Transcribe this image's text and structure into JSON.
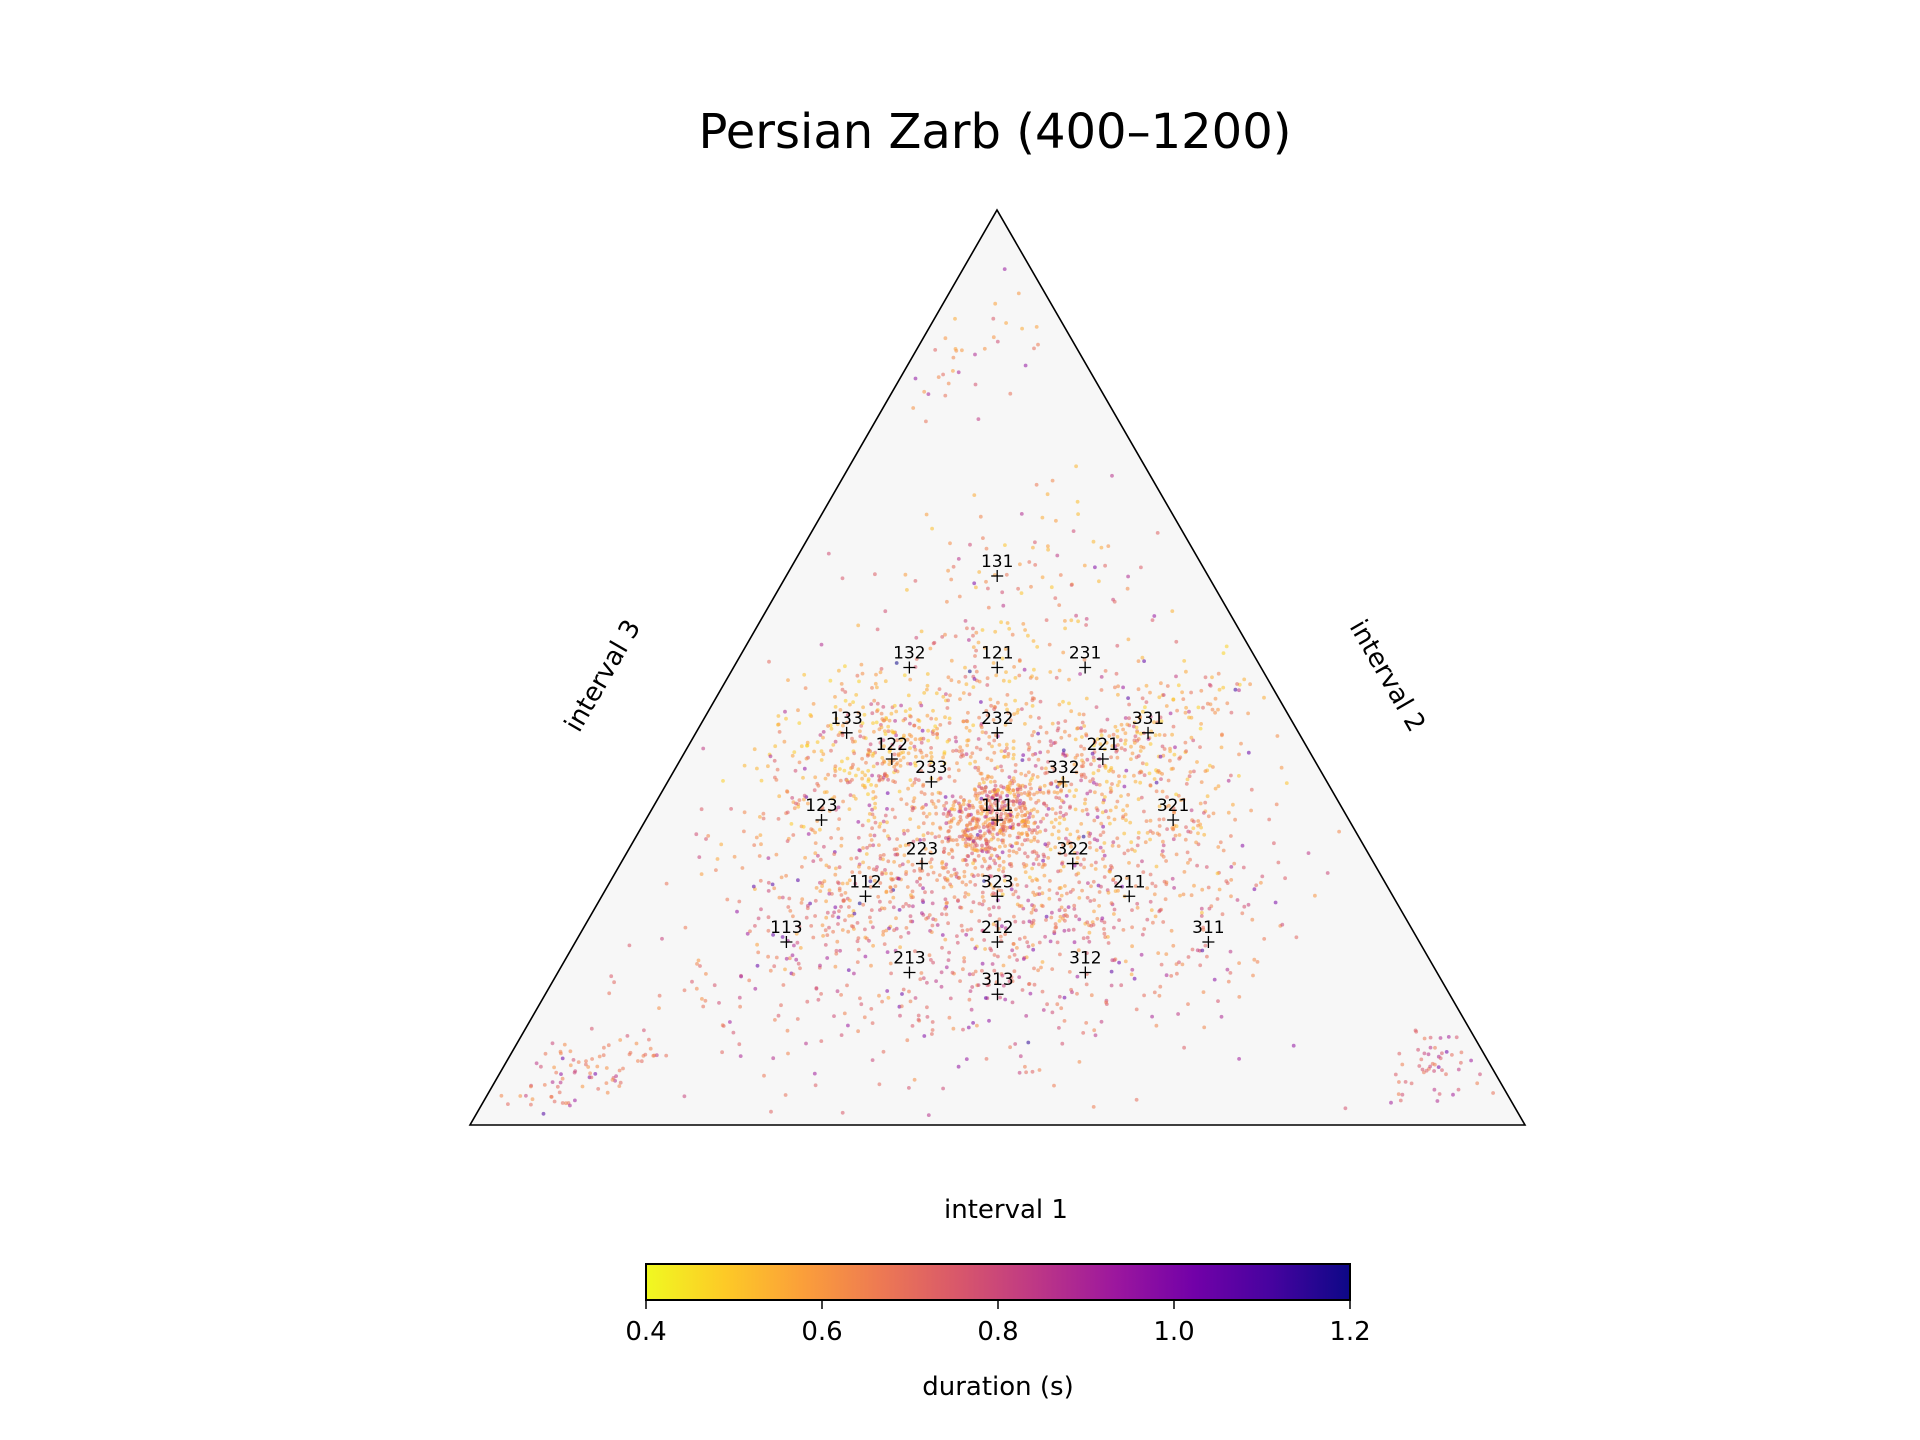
{
  "chart_data": {
    "type": "scatter",
    "subtype": "ternary",
    "title": "Persian Zarb (400–1200)",
    "axis_labels": {
      "bottom": "interval 1",
      "right": "interval 2",
      "left": "interval 3"
    },
    "colorbar": {
      "label": "duration (s)",
      "range": [
        0.4,
        1.2
      ],
      "ticks": [
        "0.4",
        "0.6",
        "0.8",
        "1.0",
        "1.2"
      ],
      "colormap": [
        "#f0f921",
        "#fdca26",
        "#fb9f3a",
        "#ed7953",
        "#d8576b",
        "#bd3786",
        "#9c179e",
        "#7201a8",
        "#46039f",
        "#0d0887"
      ]
    },
    "grid": false,
    "background_color": "#f7f7f7",
    "rhythm_templates": [
      {
        "label": "111",
        "i1": 0.3333,
        "i2": 0.3333,
        "i3": 0.3333
      },
      {
        "label": "112",
        "i1": 0.25,
        "i2": 0.25,
        "i3": 0.5
      },
      {
        "label": "121",
        "i1": 0.25,
        "i2": 0.5,
        "i3": 0.25
      },
      {
        "label": "211",
        "i1": 0.5,
        "i2": 0.25,
        "i3": 0.25
      },
      {
        "label": "113",
        "i1": 0.2,
        "i2": 0.2,
        "i3": 0.6
      },
      {
        "label": "131",
        "i1": 0.2,
        "i2": 0.6,
        "i3": 0.2
      },
      {
        "label": "311",
        "i1": 0.6,
        "i2": 0.2,
        "i3": 0.2
      },
      {
        "label": "122",
        "i1": 0.2,
        "i2": 0.4,
        "i3": 0.4
      },
      {
        "label": "212",
        "i1": 0.4,
        "i2": 0.2,
        "i3": 0.4
      },
      {
        "label": "221",
        "i1": 0.4,
        "i2": 0.4,
        "i3": 0.2
      },
      {
        "label": "123",
        "i1": 0.1667,
        "i2": 0.3333,
        "i3": 0.5
      },
      {
        "label": "132",
        "i1": 0.1667,
        "i2": 0.5,
        "i3": 0.3333
      },
      {
        "label": "213",
        "i1": 0.3333,
        "i2": 0.1667,
        "i3": 0.5
      },
      {
        "label": "231",
        "i1": 0.3333,
        "i2": 0.5,
        "i3": 0.1667
      },
      {
        "label": "312",
        "i1": 0.5,
        "i2": 0.1667,
        "i3": 0.3333
      },
      {
        "label": "321",
        "i1": 0.5,
        "i2": 0.3333,
        "i3": 0.1667
      },
      {
        "label": "133",
        "i1": 0.1429,
        "i2": 0.4286,
        "i3": 0.4286
      },
      {
        "label": "313",
        "i1": 0.4286,
        "i2": 0.1429,
        "i3": 0.4286
      },
      {
        "label": "331",
        "i1": 0.4286,
        "i2": 0.4286,
        "i3": 0.1429
      },
      {
        "label": "223",
        "i1": 0.2857,
        "i2": 0.2857,
        "i3": 0.4286
      },
      {
        "label": "232",
        "i1": 0.2857,
        "i2": 0.4286,
        "i3": 0.2857
      },
      {
        "label": "322",
        "i1": 0.4286,
        "i2": 0.2857,
        "i3": 0.2857
      },
      {
        "label": "233",
        "i1": 0.25,
        "i2": 0.375,
        "i3": 0.375
      },
      {
        "label": "323",
        "i1": 0.375,
        "i2": 0.25,
        "i3": 0.375
      },
      {
        "label": "332",
        "i1": 0.375,
        "i2": 0.375,
        "i3": 0.25
      }
    ],
    "point_clusters": [
      {
        "i1": 0.3333,
        "i2": 0.3333,
        "n": 420,
        "spread": 0.028,
        "duration": 0.55
      },
      {
        "i1": 0.3333,
        "i2": 0.3333,
        "n": 300,
        "spread": 0.07,
        "duration": 0.52
      },
      {
        "i1": 0.2,
        "i2": 0.4,
        "n": 160,
        "spread": 0.035,
        "duration": 0.48
      },
      {
        "i1": 0.1429,
        "i2": 0.4286,
        "n": 150,
        "spread": 0.04,
        "duration": 0.47
      },
      {
        "i1": 0.25,
        "i2": 0.25,
        "n": 120,
        "spread": 0.035,
        "duration": 0.55
      },
      {
        "i1": 0.5,
        "i2": 0.25,
        "n": 100,
        "spread": 0.035,
        "duration": 0.55
      },
      {
        "i1": 0.4,
        "i2": 0.4,
        "n": 110,
        "spread": 0.035,
        "duration": 0.5
      },
      {
        "i1": 0.4286,
        "i2": 0.4286,
        "n": 110,
        "spread": 0.04,
        "duration": 0.47
      },
      {
        "i1": 0.5,
        "i2": 0.3333,
        "n": 100,
        "spread": 0.04,
        "duration": 0.5
      },
      {
        "i1": 0.4286,
        "i2": 0.2857,
        "n": 90,
        "spread": 0.04,
        "duration": 0.5
      },
      {
        "i1": 0.25,
        "i2": 0.5,
        "n": 80,
        "spread": 0.045,
        "duration": 0.5
      },
      {
        "i1": 0.2,
        "i2": 0.6,
        "n": 70,
        "spread": 0.05,
        "duration": 0.5
      },
      {
        "i1": 0.2857,
        "i2": 0.4286,
        "n": 80,
        "spread": 0.04,
        "duration": 0.5
      },
      {
        "i1": 0.1667,
        "i2": 0.3333,
        "n": 80,
        "spread": 0.05,
        "duration": 0.55
      },
      {
        "i1": 0.2,
        "i2": 0.2,
        "n": 70,
        "spread": 0.05,
        "duration": 0.6
      },
      {
        "i1": 0.6,
        "i2": 0.2,
        "n": 60,
        "spread": 0.05,
        "duration": 0.6
      },
      {
        "i1": 0.2857,
        "i2": 0.2857,
        "n": 80,
        "spread": 0.04,
        "duration": 0.55
      },
      {
        "i1": 0.375,
        "i2": 0.25,
        "n": 60,
        "spread": 0.04,
        "duration": 0.6
      },
      {
        "i1": 0.4,
        "i2": 0.2,
        "n": 50,
        "spread": 0.045,
        "duration": 0.65
      },
      {
        "i1": 0.4286,
        "i2": 0.1429,
        "n": 50,
        "spread": 0.05,
        "duration": 0.65
      },
      {
        "i1": 0.5,
        "i2": 0.1667,
        "n": 50,
        "spread": 0.05,
        "duration": 0.65
      },
      {
        "i1": 0.3333,
        "i2": 0.1667,
        "n": 40,
        "spread": 0.05,
        "duration": 0.65
      },
      {
        "i1": 0.08,
        "i2": 0.05,
        "n": 90,
        "spread": 0.03,
        "duration": 0.6
      },
      {
        "i1": 0.89,
        "i2": 0.07,
        "n": 70,
        "spread": 0.03,
        "duration": 0.65
      },
      {
        "i1": 0.05,
        "i2": 0.85,
        "n": 40,
        "spread": 0.04,
        "duration": 0.55
      },
      {
        "i1": 0.3333,
        "i2": 0.3333,
        "n": 400,
        "spread": 0.2,
        "duration": 0.62
      }
    ]
  }
}
